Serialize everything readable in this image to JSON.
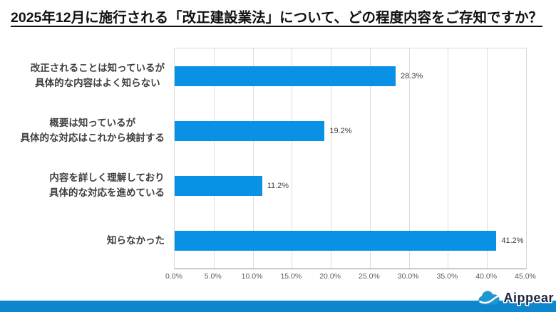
{
  "title": "2025年12月に施行される「改正建設業法」について、どの程度内容をご存知ですか？",
  "chart_data": {
    "type": "bar",
    "orientation": "horizontal",
    "title": "2025年12月に施行される「改正建設業法」について、どの程度内容をご存知ですか？",
    "categories": [
      [
        "改正されることは知っているが",
        "具体的な内容はよく知らない"
      ],
      [
        "概要は知っているが",
        "具体的な対応はこれから検討する"
      ],
      [
        "内容を詳しく理解しており",
        "具体的な対応を進めている"
      ],
      [
        "知らなかった"
      ]
    ],
    "values": [
      28.3,
      19.2,
      11.2,
      41.2
    ],
    "data_labels": [
      "28.3%",
      "19.2%",
      "11.2%",
      "41.2%"
    ],
    "x_tick_values": [
      0,
      5,
      10,
      15,
      20,
      25,
      30,
      35,
      40,
      45
    ],
    "x_tick_labels": [
      "0.0%",
      "5.0%",
      "10.0%",
      "15.0%",
      "20.0%",
      "25.0%",
      "30.0%",
      "35.0%",
      "40.0%",
      "45.0%"
    ],
    "xlim": [
      0,
      45
    ],
    "grid": true,
    "legend": false,
    "bar_color": "#0991E5",
    "gridline_color": "#dcdcdc"
  },
  "footer": {
    "brand": "Aippear",
    "strip_color": "#0D86CD",
    "cloud_color": "#1E96D2"
  }
}
